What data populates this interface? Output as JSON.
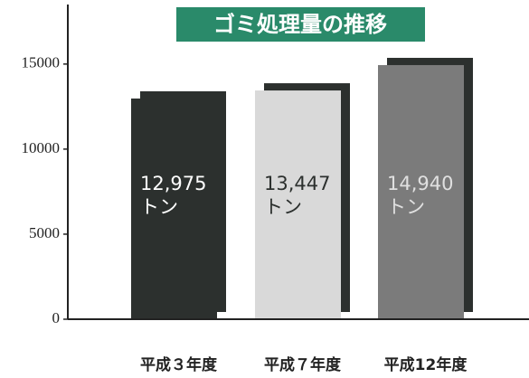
{
  "chart_data": {
    "type": "bar",
    "title": "ゴミ処理量の推移",
    "categories": [
      "平成３年度",
      "平成７年度",
      "平成12年度"
    ],
    "values": [
      12975,
      13447,
      14940
    ],
    "value_labels": [
      "12,975\nトン",
      "13,447\nトン",
      "14,940\nトン"
    ],
    "colors": [
      "#2c302e",
      "#d9d9d9",
      "#7b7b7b"
    ],
    "label_colors": [
      "#ffffff",
      "#2c302e",
      "#e0e0e0"
    ],
    "shadow_color": "#2c302e",
    "title_color": "#2a8a6a",
    "ylim": [
      0,
      18500
    ],
    "yticks": [
      0,
      5000,
      10000,
      15000
    ],
    "grid": false
  }
}
